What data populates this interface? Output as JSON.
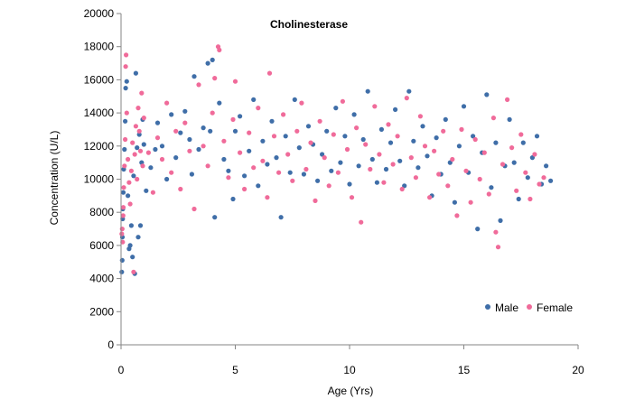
{
  "chart_data": {
    "type": "scatter",
    "title": "Cholinesterase",
    "xlabel": "Age (Yrs)",
    "ylabel": "Concentration (U/L)",
    "xlim": [
      0,
      20
    ],
    "ylim": [
      0,
      20000
    ],
    "xticks": [
      0,
      5,
      10,
      15,
      20
    ],
    "yticks": [
      0,
      2000,
      4000,
      6000,
      8000,
      10000,
      12000,
      14000,
      16000,
      18000,
      20000
    ],
    "grid": false,
    "legend_position": "bottom-right",
    "series": [
      {
        "name": "Male",
        "color": "#3F6EA8",
        "points": [
          [
            0.03,
            4400
          ],
          [
            0.05,
            5100
          ],
          [
            0.06,
            6500
          ],
          [
            0.07,
            7600
          ],
          [
            0.08,
            8200
          ],
          [
            0.1,
            9200
          ],
          [
            0.12,
            10600
          ],
          [
            0.15,
            11800
          ],
          [
            0.18,
            13500
          ],
          [
            0.2,
            15500
          ],
          [
            0.25,
            15900
          ],
          [
            0.3,
            9000
          ],
          [
            0.35,
            5800
          ],
          [
            0.4,
            6000
          ],
          [
            0.45,
            7200
          ],
          [
            0.5,
            5300
          ],
          [
            0.55,
            10200
          ],
          [
            0.6,
            4300
          ],
          [
            0.65,
            16400
          ],
          [
            0.7,
            11900
          ],
          [
            0.75,
            6500
          ],
          [
            0.8,
            12700
          ],
          [
            0.85,
            7200
          ],
          [
            0.9,
            11000
          ],
          [
            0.95,
            13600
          ],
          [
            1.0,
            12100
          ],
          [
            1.1,
            9300
          ],
          [
            1.3,
            10700
          ],
          [
            1.5,
            11800
          ],
          [
            1.6,
            13400
          ],
          [
            1.8,
            12000
          ],
          [
            2.0,
            10000
          ],
          [
            2.2,
            13900
          ],
          [
            2.4,
            11300
          ],
          [
            2.6,
            12800
          ],
          [
            2.8,
            14100
          ],
          [
            3.0,
            12400
          ],
          [
            3.1,
            10300
          ],
          [
            3.2,
            16200
          ],
          [
            3.4,
            11800
          ],
          [
            3.6,
            13100
          ],
          [
            3.8,
            17000
          ],
          [
            3.9,
            12900
          ],
          [
            4.0,
            17200
          ],
          [
            4.1,
            7700
          ],
          [
            4.3,
            14600
          ],
          [
            4.5,
            11200
          ],
          [
            4.7,
            10500
          ],
          [
            4.9,
            8800
          ],
          [
            5.0,
            12900
          ],
          [
            5.2,
            13800
          ],
          [
            5.4,
            10200
          ],
          [
            5.6,
            11700
          ],
          [
            5.8,
            14800
          ],
          [
            6.0,
            9600
          ],
          [
            6.2,
            12300
          ],
          [
            6.4,
            10900
          ],
          [
            6.6,
            13500
          ],
          [
            6.8,
            11300
          ],
          [
            7.0,
            7700
          ],
          [
            7.2,
            12600
          ],
          [
            7.4,
            10400
          ],
          [
            7.6,
            14800
          ],
          [
            7.8,
            11900
          ],
          [
            8.0,
            10300
          ],
          [
            8.2,
            13200
          ],
          [
            8.4,
            12100
          ],
          [
            8.6,
            9900
          ],
          [
            8.8,
            11500
          ],
          [
            9.0,
            12900
          ],
          [
            9.2,
            10500
          ],
          [
            9.4,
            14300
          ],
          [
            9.6,
            11000
          ],
          [
            9.8,
            12600
          ],
          [
            10.0,
            9700
          ],
          [
            10.2,
            13900
          ],
          [
            10.4,
            10800
          ],
          [
            10.6,
            12400
          ],
          [
            10.8,
            15300
          ],
          [
            11.0,
            11200
          ],
          [
            11.2,
            9800
          ],
          [
            11.4,
            13000
          ],
          [
            11.6,
            10600
          ],
          [
            11.8,
            12200
          ],
          [
            12.0,
            14200
          ],
          [
            12.2,
            11100
          ],
          [
            12.4,
            9600
          ],
          [
            12.6,
            15300
          ],
          [
            12.8,
            12300
          ],
          [
            13.0,
            10700
          ],
          [
            13.2,
            13200
          ],
          [
            13.4,
            11400
          ],
          [
            13.6,
            9000
          ],
          [
            13.8,
            12500
          ],
          [
            14.0,
            10300
          ],
          [
            14.2,
            13600
          ],
          [
            14.4,
            11000
          ],
          [
            14.6,
            8600
          ],
          [
            14.8,
            12000
          ],
          [
            15.0,
            14400
          ],
          [
            15.2,
            10400
          ],
          [
            15.4,
            12600
          ],
          [
            15.6,
            7000
          ],
          [
            15.8,
            11600
          ],
          [
            16.0,
            15100
          ],
          [
            16.2,
            9500
          ],
          [
            16.4,
            12200
          ],
          [
            16.6,
            7500
          ],
          [
            16.8,
            10800
          ],
          [
            17.0,
            13600
          ],
          [
            17.2,
            11000
          ],
          [
            17.4,
            8800
          ],
          [
            17.6,
            12200
          ],
          [
            17.8,
            10100
          ],
          [
            18.0,
            11300
          ],
          [
            18.2,
            12600
          ],
          [
            18.4,
            9700
          ],
          [
            18.6,
            10800
          ],
          [
            18.8,
            9900
          ]
        ]
      },
      {
        "name": "Female",
        "color": "#F06B9A",
        "points": [
          [
            0.03,
            6700
          ],
          [
            0.05,
            7000
          ],
          [
            0.07,
            6200
          ],
          [
            0.09,
            7800
          ],
          [
            0.1,
            8300
          ],
          [
            0.12,
            9500
          ],
          [
            0.15,
            10800
          ],
          [
            0.18,
            12400
          ],
          [
            0.2,
            16800
          ],
          [
            0.22,
            17500
          ],
          [
            0.25,
            14000
          ],
          [
            0.3,
            11200
          ],
          [
            0.35,
            9800
          ],
          [
            0.4,
            8500
          ],
          [
            0.45,
            10500
          ],
          [
            0.5,
            12200
          ],
          [
            0.55,
            4400
          ],
          [
            0.6,
            11500
          ],
          [
            0.65,
            13200
          ],
          [
            0.7,
            10000
          ],
          [
            0.75,
            14300
          ],
          [
            0.8,
            12900
          ],
          [
            0.85,
            11700
          ],
          [
            0.9,
            15200
          ],
          [
            0.95,
            10800
          ],
          [
            1.0,
            13700
          ],
          [
            1.2,
            11600
          ],
          [
            1.4,
            9200
          ],
          [
            1.6,
            12500
          ],
          [
            1.8,
            11200
          ],
          [
            2.0,
            14600
          ],
          [
            2.2,
            10400
          ],
          [
            2.4,
            12900
          ],
          [
            2.6,
            9400
          ],
          [
            2.8,
            13400
          ],
          [
            3.0,
            11700
          ],
          [
            3.2,
            8200
          ],
          [
            3.4,
            15700
          ],
          [
            3.6,
            12000
          ],
          [
            3.8,
            10800
          ],
          [
            4.0,
            14000
          ],
          [
            4.1,
            16100
          ],
          [
            4.25,
            18000
          ],
          [
            4.3,
            17800
          ],
          [
            4.5,
            12300
          ],
          [
            4.7,
            10100
          ],
          [
            4.9,
            13600
          ],
          [
            5.0,
            15900
          ],
          [
            5.2,
            11600
          ],
          [
            5.4,
            9400
          ],
          [
            5.6,
            12800
          ],
          [
            5.8,
            10700
          ],
          [
            6.0,
            14300
          ],
          [
            6.2,
            11100
          ],
          [
            6.4,
            8900
          ],
          [
            6.5,
            16400
          ],
          [
            6.7,
            12600
          ],
          [
            6.9,
            10400
          ],
          [
            7.1,
            13900
          ],
          [
            7.3,
            11500
          ],
          [
            7.5,
            9900
          ],
          [
            7.7,
            12900
          ],
          [
            7.9,
            14600
          ],
          [
            8.1,
            10600
          ],
          [
            8.3,
            12200
          ],
          [
            8.5,
            8700
          ],
          [
            8.7,
            13500
          ],
          [
            8.9,
            11300
          ],
          [
            9.1,
            9600
          ],
          [
            9.3,
            12700
          ],
          [
            9.5,
            10400
          ],
          [
            9.7,
            14700
          ],
          [
            9.9,
            11800
          ],
          [
            10.1,
            8900
          ],
          [
            10.3,
            13100
          ],
          [
            10.5,
            7400
          ],
          [
            10.7,
            12100
          ],
          [
            10.9,
            10600
          ],
          [
            11.1,
            14400
          ],
          [
            11.3,
            11500
          ],
          [
            11.5,
            9800
          ],
          [
            11.7,
            13300
          ],
          [
            11.9,
            10900
          ],
          [
            12.1,
            12600
          ],
          [
            12.3,
            9400
          ],
          [
            12.5,
            14900
          ],
          [
            12.7,
            11300
          ],
          [
            12.9,
            10100
          ],
          [
            13.1,
            13800
          ],
          [
            13.3,
            12000
          ],
          [
            13.5,
            8900
          ],
          [
            13.7,
            11700
          ],
          [
            13.9,
            10300
          ],
          [
            14.1,
            12900
          ],
          [
            14.3,
            9600
          ],
          [
            14.5,
            11200
          ],
          [
            14.7,
            7800
          ],
          [
            14.9,
            13000
          ],
          [
            15.1,
            10500
          ],
          [
            15.3,
            8600
          ],
          [
            15.5,
            12400
          ],
          [
            15.7,
            10000
          ],
          [
            15.9,
            11600
          ],
          [
            16.1,
            9100
          ],
          [
            16.3,
            13700
          ],
          [
            16.4,
            6800
          ],
          [
            16.5,
            5900
          ],
          [
            16.7,
            10900
          ],
          [
            16.9,
            14800
          ],
          [
            17.1,
            11900
          ],
          [
            17.3,
            9300
          ],
          [
            17.5,
            12700
          ],
          [
            17.7,
            10400
          ],
          [
            17.9,
            8800
          ],
          [
            18.1,
            11500
          ],
          [
            18.3,
            9700
          ],
          [
            18.5,
            10100
          ]
        ]
      }
    ]
  }
}
